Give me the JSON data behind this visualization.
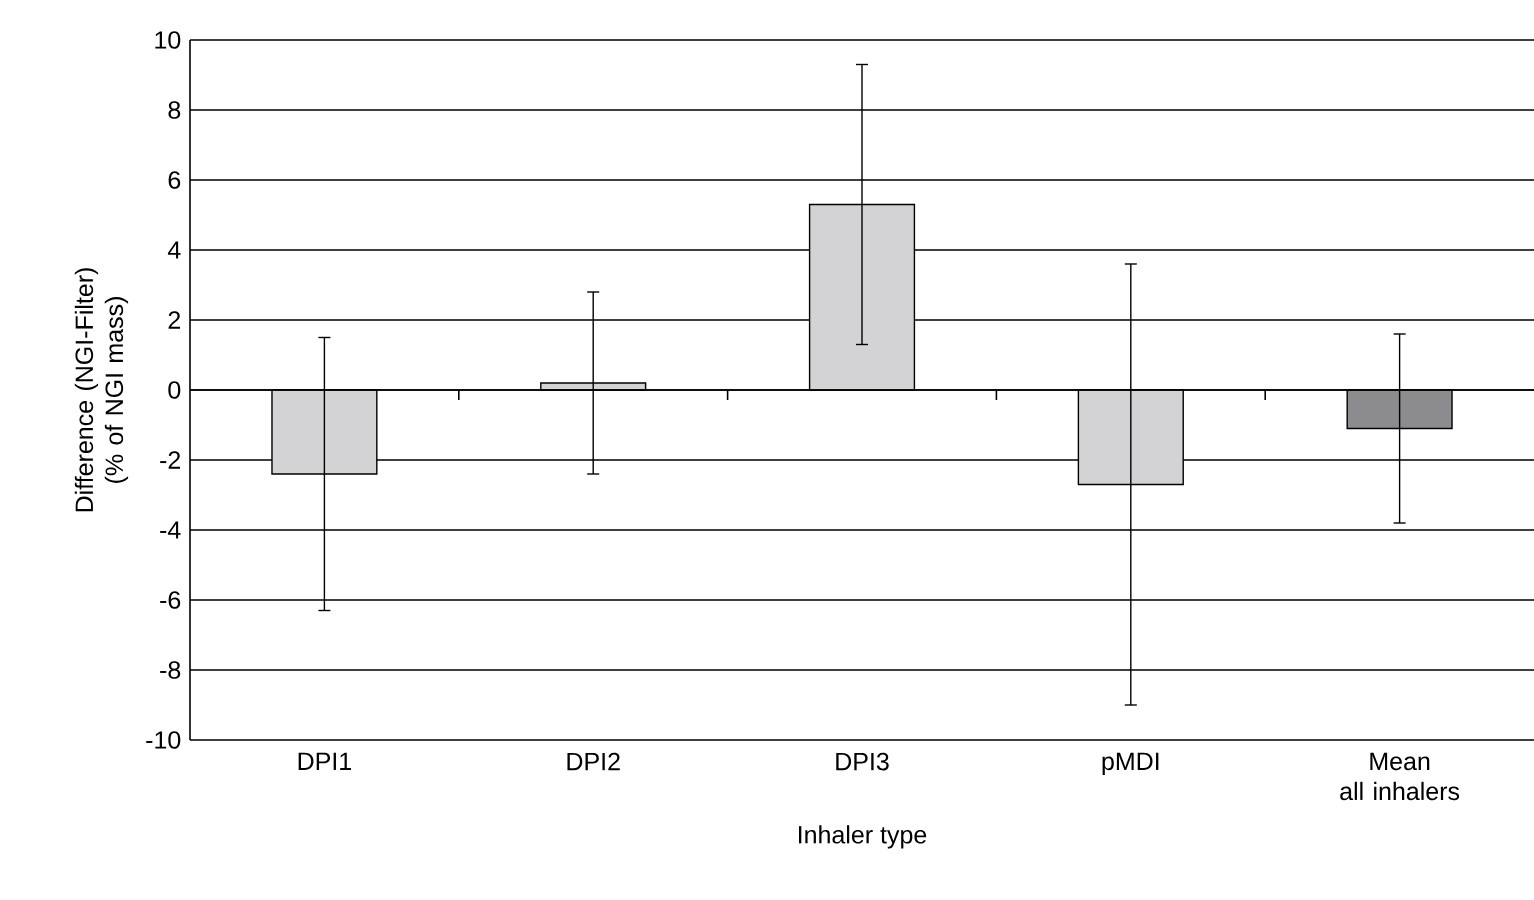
{
  "chart_data": {
    "type": "bar",
    "xlabel": "Inhaler type",
    "ylabel": "Difference (NGI-Filter) (% of NGI mass)",
    "categories": [
      "DPI1",
      "DPI2",
      "DPI3",
      "pMDI",
      "Mean all inhalers"
    ],
    "values": [
      -2.4,
      0.2,
      5.3,
      -2.7,
      -1.1
    ],
    "errors": [
      3.9,
      2.6,
      4.0,
      6.3,
      2.7
    ],
    "colors": [
      "#d3d3d5",
      "#d3d3d5",
      "#d3d3d5",
      "#d3d3d5",
      "#8c8c8e"
    ],
    "ylim": [
      -10,
      10
    ],
    "yticks": [
      -10,
      -8,
      -6,
      -4,
      -2,
      0,
      2,
      4,
      6,
      8,
      10
    ],
    "grid": "y"
  }
}
